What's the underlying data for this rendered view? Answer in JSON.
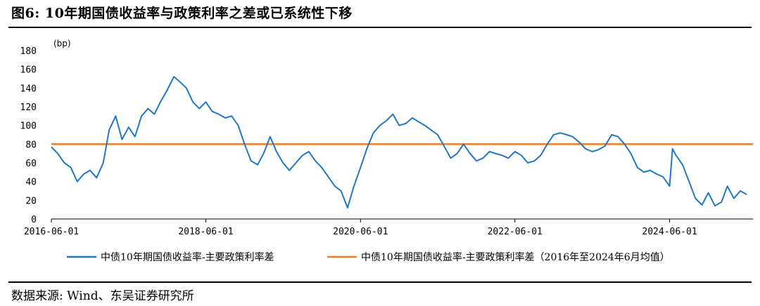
{
  "title": "图6:  10年期国债收益率与政策利率之差或已系统性下移",
  "source": "数据来源:  Wind、东吴证券研究所",
  "chart_data": {
    "type": "line",
    "ylabel": "(bp)",
    "ylim": [
      0,
      180
    ],
    "yticks": [
      0,
      20,
      40,
      60,
      80,
      100,
      120,
      140,
      160,
      180
    ],
    "xlim": [
      "2016-06-01",
      "2025-06-30"
    ],
    "xticks": [
      "2016-06-01",
      "2018-06-01",
      "2020-06-01",
      "2022-06-01",
      "2024-06-01"
    ],
    "grid": false,
    "legend_position": "bottom",
    "series": [
      {
        "name": "中债10年期国债收益率-主要政策利率差",
        "color": "#1f77c8",
        "points": [
          [
            "2016-06-01",
            77
          ],
          [
            "2016-07-01",
            70
          ],
          [
            "2016-08-01",
            60
          ],
          [
            "2016-09-01",
            55
          ],
          [
            "2016-10-01",
            40
          ],
          [
            "2016-11-01",
            48
          ],
          [
            "2016-12-01",
            52
          ],
          [
            "2017-01-01",
            44
          ],
          [
            "2017-02-01",
            60
          ],
          [
            "2017-03-01",
            95
          ],
          [
            "2017-04-01",
            110
          ],
          [
            "2017-05-01",
            85
          ],
          [
            "2017-06-01",
            98
          ],
          [
            "2017-07-01",
            88
          ],
          [
            "2017-08-01",
            110
          ],
          [
            "2017-09-01",
            118
          ],
          [
            "2017-10-01",
            112
          ],
          [
            "2017-11-01",
            126
          ],
          [
            "2017-12-01",
            138
          ],
          [
            "2018-01-01",
            152
          ],
          [
            "2018-02-01",
            146
          ],
          [
            "2018-03-01",
            140
          ],
          [
            "2018-04-01",
            125
          ],
          [
            "2018-05-01",
            118
          ],
          [
            "2018-06-01",
            125
          ],
          [
            "2018-07-01",
            115
          ],
          [
            "2018-08-01",
            112
          ],
          [
            "2018-09-01",
            108
          ],
          [
            "2018-10-01",
            110
          ],
          [
            "2018-11-01",
            100
          ],
          [
            "2018-12-01",
            80
          ],
          [
            "2019-01-01",
            62
          ],
          [
            "2019-02-01",
            58
          ],
          [
            "2019-03-01",
            70
          ],
          [
            "2019-04-01",
            88
          ],
          [
            "2019-05-01",
            72
          ],
          [
            "2019-06-01",
            60
          ],
          [
            "2019-07-01",
            52
          ],
          [
            "2019-08-01",
            60
          ],
          [
            "2019-09-01",
            68
          ],
          [
            "2019-10-01",
            72
          ],
          [
            "2019-11-01",
            62
          ],
          [
            "2019-12-01",
            55
          ],
          [
            "2020-01-01",
            45
          ],
          [
            "2020-02-01",
            35
          ],
          [
            "2020-03-01",
            30
          ],
          [
            "2020-04-01",
            12
          ],
          [
            "2020-05-01",
            35
          ],
          [
            "2020-06-01",
            55
          ],
          [
            "2020-07-01",
            75
          ],
          [
            "2020-08-01",
            92
          ],
          [
            "2020-09-01",
            100
          ],
          [
            "2020-10-01",
            105
          ],
          [
            "2020-11-01",
            112
          ],
          [
            "2020-12-01",
            100
          ],
          [
            "2021-01-01",
            102
          ],
          [
            "2021-02-01",
            108
          ],
          [
            "2021-03-01",
            104
          ],
          [
            "2021-04-01",
            100
          ],
          [
            "2021-05-01",
            95
          ],
          [
            "2021-06-01",
            90
          ],
          [
            "2021-07-01",
            78
          ],
          [
            "2021-08-01",
            65
          ],
          [
            "2021-09-01",
            70
          ],
          [
            "2021-10-01",
            80
          ],
          [
            "2021-11-01",
            70
          ],
          [
            "2021-12-01",
            62
          ],
          [
            "2022-01-01",
            65
          ],
          [
            "2022-02-01",
            72
          ],
          [
            "2022-03-01",
            70
          ],
          [
            "2022-04-01",
            68
          ],
          [
            "2022-05-01",
            65
          ],
          [
            "2022-06-01",
            72
          ],
          [
            "2022-07-01",
            68
          ],
          [
            "2022-08-01",
            60
          ],
          [
            "2022-09-01",
            62
          ],
          [
            "2022-10-01",
            68
          ],
          [
            "2022-11-01",
            80
          ],
          [
            "2022-12-01",
            90
          ],
          [
            "2023-01-01",
            92
          ],
          [
            "2023-02-01",
            90
          ],
          [
            "2023-03-01",
            88
          ],
          [
            "2023-04-01",
            82
          ],
          [
            "2023-05-01",
            75
          ],
          [
            "2023-06-01",
            72
          ],
          [
            "2023-07-01",
            74
          ],
          [
            "2023-08-01",
            78
          ],
          [
            "2023-09-01",
            90
          ],
          [
            "2023-10-01",
            88
          ],
          [
            "2023-11-01",
            80
          ],
          [
            "2023-12-01",
            70
          ],
          [
            "2024-01-01",
            55
          ],
          [
            "2024-02-01",
            50
          ],
          [
            "2024-03-01",
            52
          ],
          [
            "2024-04-01",
            48
          ],
          [
            "2024-05-01",
            45
          ],
          [
            "2024-06-01",
            35
          ],
          [
            "2024-06-15",
            75
          ],
          [
            "2024-07-01",
            68
          ],
          [
            "2024-08-01",
            58
          ],
          [
            "2024-09-01",
            40
          ],
          [
            "2024-10-01",
            22
          ],
          [
            "2024-11-01",
            15
          ],
          [
            "2024-12-01",
            28
          ],
          [
            "2025-01-01",
            14
          ],
          [
            "2025-02-01",
            18
          ],
          [
            "2025-03-01",
            35
          ],
          [
            "2025-04-01",
            22
          ],
          [
            "2025-05-01",
            30
          ],
          [
            "2025-06-01",
            26
          ]
        ]
      },
      {
        "name": "中债10年期国债收益率-主要政策利率差（2016年至2024年6月均值）",
        "color": "#f07d24",
        "value": 80
      }
    ]
  }
}
